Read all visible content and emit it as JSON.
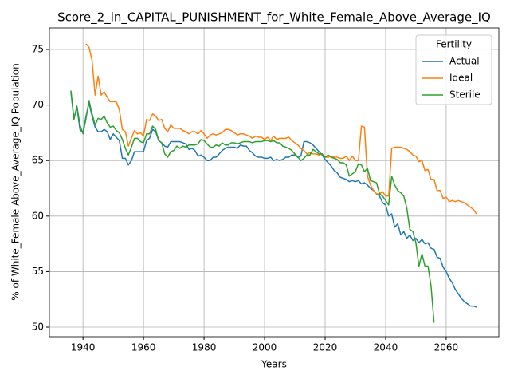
{
  "chart_data": {
    "type": "line",
    "title": "Score_2_in_CAPITAL_PUNISHMENT_for_White_Female_Above_Average_IQ",
    "xlabel": "Years",
    "ylabel": "% of White_Female Above_Average_IQ Population",
    "legend_title": "Fertility",
    "legend": "upper right",
    "grid": true,
    "xlim": [
      1928.9,
      2077.4
    ],
    "ylim": [
      49.14,
      76.94
    ],
    "xticks": [
      1940,
      1960,
      1980,
      2000,
      2020,
      2040,
      2060
    ],
    "yticks": [
      50,
      55,
      60,
      65,
      70,
      75
    ],
    "x": [
      1936,
      1937,
      1938,
      1939,
      1940,
      1941,
      1942,
      1943,
      1944,
      1945,
      1946,
      1947,
      1948,
      1949,
      1950,
      1951,
      1952,
      1953,
      1954,
      1955,
      1956,
      1957,
      1958,
      1959,
      1960,
      1961,
      1962,
      1963,
      1964,
      1965,
      1966,
      1967,
      1968,
      1969,
      1970,
      1971,
      1972,
      1973,
      1974,
      1975,
      1976,
      1977,
      1978,
      1979,
      1980,
      1981,
      1982,
      1983,
      1984,
      1985,
      1986,
      1987,
      1988,
      1989,
      1990,
      1991,
      1992,
      1993,
      1994,
      1995,
      1996,
      1997,
      1998,
      1999,
      2000,
      2001,
      2002,
      2003,
      2004,
      2005,
      2006,
      2007,
      2008,
      2009,
      2010,
      2011,
      2012,
      2013,
      2014,
      2015,
      2016,
      2017,
      2018,
      2019,
      2020,
      2021,
      2022,
      2023,
      2024,
      2025,
      2026,
      2027,
      2028,
      2029,
      2030,
      2031,
      2032,
      2033,
      2034,
      2035,
      2036,
      2037,
      2038,
      2039,
      2040,
      2041,
      2042,
      2043,
      2044,
      2045,
      2046,
      2047,
      2048,
      2049,
      2050,
      2051,
      2052,
      2053,
      2054,
      2055,
      2056,
      2057,
      2058,
      2059,
      2060,
      2061,
      2062,
      2063,
      2064,
      2065,
      2066,
      2067,
      2068,
      2069,
      2070
    ],
    "series": [
      {
        "name": "Actual",
        "color": "#1f77b4",
        "values": [
          71.2,
          68.8,
          69.8,
          67.8,
          67.5,
          69.0,
          70.2,
          69.0,
          68.0,
          67.6,
          67.6,
          67.8,
          67.6,
          66.9,
          67.4,
          67.1,
          66.8,
          65.2,
          65.2,
          64.6,
          65.0,
          65.8,
          65.8,
          65.8,
          65.8,
          66.8,
          67.0,
          67.8,
          67.6,
          66.8,
          66.6,
          66.3,
          66.2,
          66.7,
          66.7,
          66.7,
          66.7,
          66.6,
          66.5,
          66.0,
          66.1,
          65.9,
          65.4,
          65.5,
          65.3,
          65.0,
          65.0,
          65.3,
          65.3,
          65.6,
          65.9,
          66.1,
          66.2,
          66.2,
          66.2,
          66.1,
          66.4,
          66.3,
          66.3,
          65.9,
          65.7,
          65.4,
          65.3,
          65.3,
          65.2,
          65.2,
          65.3,
          65.0,
          65.1,
          65.0,
          65.1,
          65.3,
          65.3,
          65.5,
          65.5,
          65.3,
          65.4,
          66.7,
          66.7,
          66.6,
          66.4,
          66.1,
          65.8,
          65.5,
          65.1,
          64.8,
          64.5,
          64.1,
          63.9,
          63.5,
          63.4,
          63.3,
          63.1,
          63.2,
          63.1,
          63.2,
          62.9,
          63.0,
          62.8,
          62.5,
          62.3,
          62.0,
          61.8,
          61.2,
          61.0,
          60.0,
          60.2,
          59.0,
          59.3,
          58.3,
          58.6,
          58.0,
          58.3,
          57.8,
          58.0,
          57.6,
          57.9,
          57.5,
          57.6,
          57.1,
          57.0,
          56.3,
          56.2,
          55.4,
          55.0,
          54.4,
          54.0,
          53.4,
          53.0,
          52.6,
          52.3,
          52.1,
          51.9,
          51.9,
          51.8
        ]
      },
      {
        "name": "Ideal",
        "color": "#ff7f0e",
        "values": [
          null,
          null,
          null,
          null,
          null,
          75.5,
          75.2,
          74.0,
          70.9,
          72.6,
          70.9,
          71.2,
          70.7,
          70.3,
          70.3,
          70.3,
          69.6,
          67.8,
          67.6,
          66.3,
          67.0,
          67.7,
          67.4,
          67.5,
          67.2,
          68.7,
          68.6,
          69.2,
          69.0,
          68.6,
          68.7,
          67.9,
          67.6,
          68.2,
          67.9,
          67.9,
          67.9,
          67.7,
          67.6,
          67.4,
          67.6,
          67.6,
          67.4,
          67.7,
          67.4,
          67.0,
          67.3,
          67.4,
          67.3,
          67.4,
          67.5,
          67.8,
          67.8,
          67.7,
          67.5,
          67.3,
          67.4,
          67.4,
          67.3,
          67.2,
          67.0,
          67.2,
          67.1,
          67.1,
          66.9,
          67.1,
          66.8,
          67.2,
          66.9,
          67.0,
          67.0,
          67.0,
          67.1,
          66.8,
          66.6,
          66.4,
          66.1,
          65.9,
          65.6,
          65.7,
          65.6,
          65.6,
          65.5,
          65.6,
          65.3,
          65.3,
          65.4,
          65.3,
          65.3,
          65.2,
          65.2,
          65.4,
          65.0,
          65.4,
          65.0,
          65.0,
          68.1,
          68.0,
          63.6,
          62.8,
          62.3,
          62.0,
          62.0,
          62.2,
          61.8,
          61.8,
          66.1,
          66.2,
          66.2,
          66.2,
          66.1,
          66.0,
          65.8,
          65.5,
          65.4,
          64.9,
          65.0,
          64.1,
          64.2,
          63.3,
          63.3,
          62.3,
          62.3,
          61.6,
          61.7,
          61.3,
          61.4,
          61.3,
          61.4,
          61.3,
          61.2,
          61.0,
          60.8,
          60.6,
          60.2
        ]
      },
      {
        "name": "Sterile",
        "color": "#2ca02c",
        "values": [
          71.3,
          68.7,
          69.9,
          68.2,
          67.4,
          68.8,
          70.4,
          69.2,
          68.2,
          68.8,
          68.7,
          69.0,
          68.4,
          68.0,
          68.1,
          67.7,
          67.5,
          66.9,
          66.1,
          65.5,
          66.2,
          67.0,
          67.0,
          66.7,
          66.6,
          67.4,
          67.4,
          68.1,
          67.8,
          66.8,
          66.6,
          65.6,
          65.3,
          65.8,
          65.9,
          66.3,
          66.1,
          66.3,
          66.2,
          66.4,
          66.4,
          66.4,
          66.5,
          66.9,
          66.8,
          66.5,
          66.2,
          66.2,
          66.4,
          66.3,
          66.6,
          66.4,
          66.4,
          66.6,
          66.6,
          66.5,
          66.6,
          66.7,
          66.7,
          66.7,
          66.6,
          66.7,
          66.7,
          66.7,
          66.8,
          66.8,
          66.7,
          66.8,
          66.6,
          66.6,
          66.3,
          66.2,
          66.1,
          65.9,
          65.6,
          65.3,
          65.0,
          65.2,
          65.5,
          65.5,
          66.0,
          65.8,
          65.6,
          65.6,
          65.3,
          65.5,
          65.3,
          65.2,
          65.1,
          64.8,
          64.8,
          64.6,
          63.6,
          63.8,
          64.0,
          64.7,
          64.6,
          64.0,
          64.3,
          63.2,
          63.1,
          63.0,
          62.0,
          61.8,
          61.4,
          61.0,
          63.6,
          62.8,
          62.3,
          62.1,
          61.8,
          60.7,
          58.8,
          58.6,
          57.6,
          55.5,
          56.6,
          55.5,
          55.5,
          53.7,
          50.4,
          null,
          null,
          null,
          null,
          null,
          null,
          null,
          null,
          null,
          null,
          null,
          null,
          null,
          null
        ]
      }
    ]
  }
}
